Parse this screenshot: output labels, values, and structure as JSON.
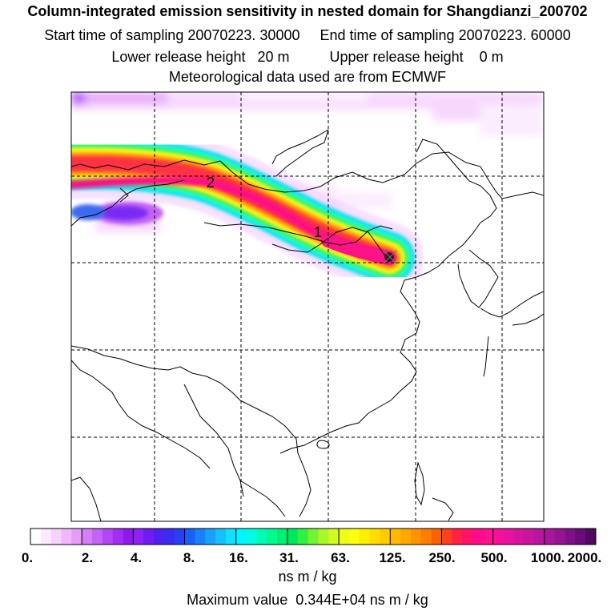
{
  "header": {
    "title": "Column-integrated emission sensitivity in nested domain for Shangdianzi_200702",
    "sampling": "Start time of sampling 20070223. 30000     End time of sampling 20070223. 60000",
    "release": "Lower release height   20 m          Upper release height    0 m",
    "met": "Meteorological data used are from ECMWF"
  },
  "map": {
    "trajectory_labels": [
      "1",
      "2"
    ],
    "plume_colors": {
      "outer": "#00ddee",
      "mid_cyan": "#22ffdd",
      "green": "#33ee55",
      "yellow": "#ffff22",
      "orange": "#ffaa00",
      "red": "#ff3344",
      "magenta": "#ff1188",
      "core": "#660022",
      "faint": "#f2c8ff",
      "violet": "#8833ff"
    }
  },
  "legend": {
    "tick_labels": [
      "0.",
      "2.",
      "4.",
      "8.",
      "16.",
      "31.",
      "63.",
      "125.",
      "250.",
      "500.",
      "1000.",
      "2000."
    ],
    "colors": [
      [
        "#ffffff",
        "#fbeafe",
        "#f6d2fd",
        "#f0b8fb",
        "#e59cf8"
      ],
      [
        "#d47ef7",
        "#c463f5",
        "#b347f4",
        "#a22ef2",
        "#9018ef"
      ],
      [
        "#8c20f5",
        "#6f1cf3",
        "#5020ef",
        "#3a2cf0",
        "#2840f2"
      ],
      [
        "#1760f6",
        "#1780fa",
        "#18a0fc",
        "#14c0fd",
        "#12e0ff"
      ],
      [
        "#00f5ff",
        "#00fde0",
        "#00fdb8",
        "#00fa90",
        "#00f070"
      ],
      [
        "#00e860",
        "#30f040",
        "#70f530",
        "#a8f828",
        "#d0fa20"
      ],
      [
        "#eefc18",
        "#ffff10",
        "#ffee00",
        "#ffde00",
        "#ffcc00"
      ],
      [
        "#ffba00",
        "#ffa800",
        "#ff9400",
        "#ff7e00",
        "#ff6000"
      ],
      [
        "#ff4020",
        "#ff2244",
        "#ff1268",
        "#ff0a88",
        "#ff1090"
      ],
      [
        "#f8109a",
        "#e812a0",
        "#d813a0",
        "#c8159e",
        "#b8169c"
      ],
      [
        "#a8169a",
        "#941492",
        "#801088",
        "#6a0c78",
        "#52085f"
      ]
    ],
    "units": "ns m / kg",
    "max_value": "Maximum value  0.344E+04 ns m / kg"
  }
}
